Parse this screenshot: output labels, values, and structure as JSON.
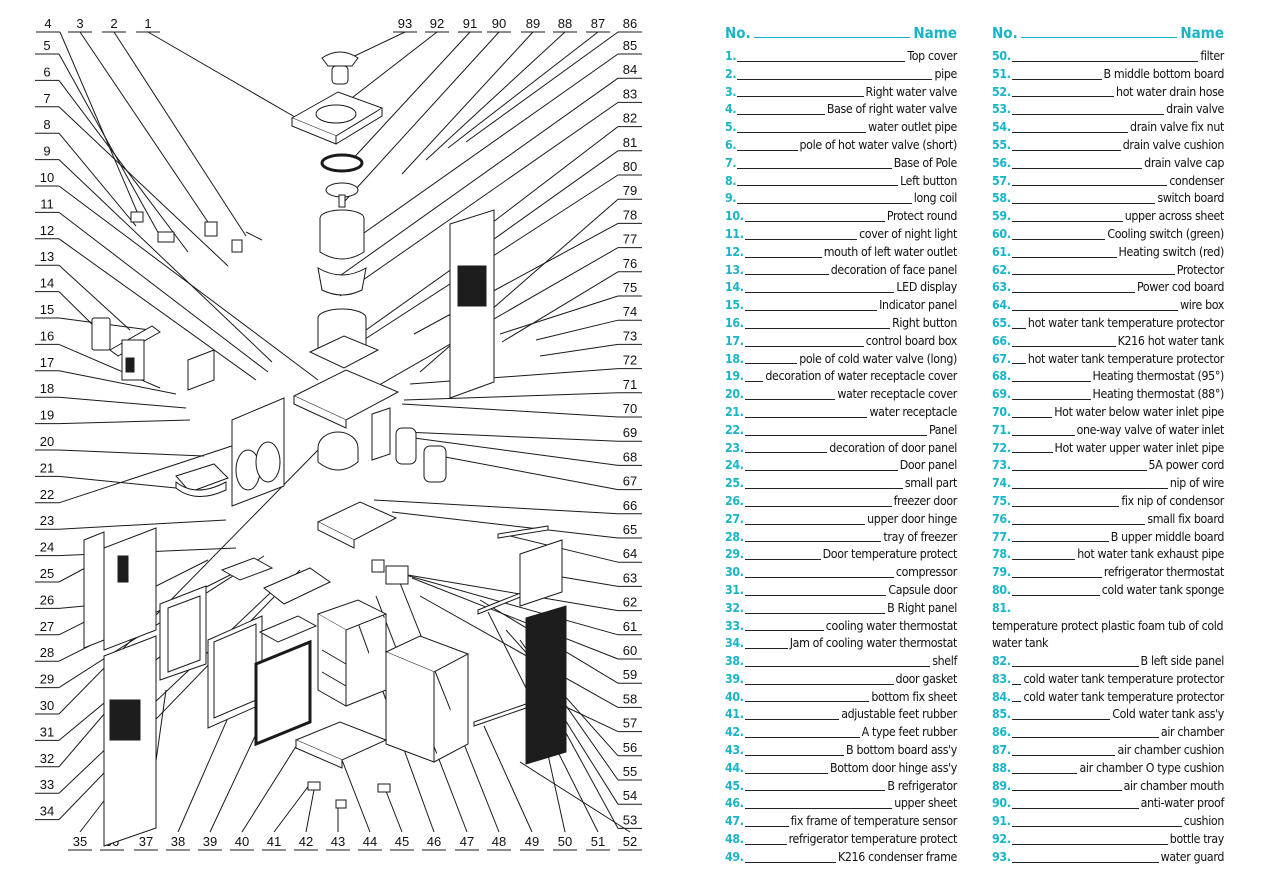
{
  "diagram": {
    "callouts": [
      "1",
      "2",
      "3",
      "4",
      "5",
      "6",
      "7",
      "8",
      "9",
      "10",
      "11",
      "12",
      "13",
      "14",
      "15",
      "16",
      "17",
      "18",
      "19",
      "20",
      "21",
      "22",
      "23",
      "24",
      "25",
      "26",
      "27",
      "28",
      "29",
      "30",
      "31",
      "32",
      "33",
      "34",
      "35",
      "36",
      "37",
      "38",
      "39",
      "40",
      "41",
      "42",
      "43",
      "44",
      "45",
      "46",
      "47",
      "48",
      "49",
      "50",
      "51",
      "52",
      "53",
      "54",
      "55",
      "56",
      "57",
      "58",
      "59",
      "60",
      "61",
      "62",
      "63",
      "64",
      "65",
      "66",
      "67",
      "68",
      "69",
      "70",
      "71",
      "72",
      "73",
      "74",
      "75",
      "76",
      "77",
      "78",
      "79",
      "80",
      "81",
      "82",
      "83",
      "84",
      "85",
      "86",
      "87",
      "88",
      "89",
      "90",
      "91",
      "92",
      "93"
    ]
  },
  "legend": {
    "header_no": "No.",
    "header_name": "Name",
    "left": [
      {
        "no": "1.",
        "name": "Top cover"
      },
      {
        "no": "2.",
        "name": "pipe"
      },
      {
        "no": "3.",
        "name": "Right water valve"
      },
      {
        "no": "4.",
        "name": "Base of right water valve"
      },
      {
        "no": "5.",
        "name": "water outlet pipe"
      },
      {
        "no": "6.",
        "name": "pole of hot water valve (short)"
      },
      {
        "no": "7.",
        "name": "Base of Pole"
      },
      {
        "no": "8.",
        "name": "Left button"
      },
      {
        "no": "9.",
        "name": "long coil"
      },
      {
        "no": "10.",
        "name": "Protect round"
      },
      {
        "no": "11.",
        "name": "cover of night light"
      },
      {
        "no": "12.",
        "name": "mouth of left water outlet"
      },
      {
        "no": "13.",
        "name": "decoration of face panel"
      },
      {
        "no": "14.",
        "name": "LED display"
      },
      {
        "no": "15.",
        "name": "Indicator panel"
      },
      {
        "no": "16.",
        "name": "Right button"
      },
      {
        "no": "17.",
        "name": "control board box"
      },
      {
        "no": "18.",
        "name": "pole of cold water valve (long)"
      },
      {
        "no": "19.",
        "name": "decoration of water receptacle cover"
      },
      {
        "no": "20.",
        "name": "water receptacle cover"
      },
      {
        "no": "21.",
        "name": "water receptacle"
      },
      {
        "no": "22.",
        "name": "Panel"
      },
      {
        "no": "23.",
        "name": "decoration of door panel"
      },
      {
        "no": "24.",
        "name": "Door panel"
      },
      {
        "no": "25.",
        "name": "small part"
      },
      {
        "no": "26.",
        "name": "freezer door"
      },
      {
        "no": "27.",
        "name": "upper door hinge"
      },
      {
        "no": "28.",
        "name": "tray of freezer"
      },
      {
        "no": "29.",
        "name": "Door temperature protect"
      },
      {
        "no": "30.",
        "name": "compressor"
      },
      {
        "no": "31.",
        "name": "Capsule door"
      },
      {
        "no": "32.",
        "name": "B Right panel"
      },
      {
        "no": "33.",
        "name": "cooling water thermostat"
      },
      {
        "no": "34.",
        "name": "Jam of cooling water thermostat"
      },
      {
        "no": "38.",
        "name": "shelf"
      },
      {
        "no": "39.",
        "name": "door gasket"
      },
      {
        "no": "40.",
        "name": "bottom fix sheet"
      },
      {
        "no": "41.",
        "name": "adjustable feet rubber"
      },
      {
        "no": "42.",
        "name": "A type feet rubber"
      },
      {
        "no": "43.",
        "name": "B bottom board ass'y"
      },
      {
        "no": "44.",
        "name": "Bottom door hinge ass'y"
      },
      {
        "no": "45.",
        "name": "B refrigerator"
      },
      {
        "no": "46.",
        "name": "upper sheet"
      },
      {
        "no": "47.",
        "name": "fix frame of temperature sensor"
      },
      {
        "no": "48.",
        "name": "refrigerator temperature protect"
      },
      {
        "no": "49.",
        "name": "K216 condenser frame"
      }
    ],
    "right": [
      {
        "no": "50.",
        "name": "filter"
      },
      {
        "no": "51.",
        "name": "B middle bottom board"
      },
      {
        "no": "52.",
        "name": "hot water drain hose"
      },
      {
        "no": "53.",
        "name": "drain valve"
      },
      {
        "no": "54.",
        "name": "drain valve fix nut"
      },
      {
        "no": "55.",
        "name": "drain valve cushion"
      },
      {
        "no": "56.",
        "name": "drain valve cap"
      },
      {
        "no": "57.",
        "name": "condenser"
      },
      {
        "no": "58.",
        "name": "switch board"
      },
      {
        "no": "59.",
        "name": "upper across sheet"
      },
      {
        "no": "60.",
        "name": "Cooling switch (green)"
      },
      {
        "no": "61.",
        "name": "Heating switch (red)"
      },
      {
        "no": "62.",
        "name": "Protector"
      },
      {
        "no": "63.",
        "name": "Power cod board"
      },
      {
        "no": "64.",
        "name": "wire box"
      },
      {
        "no": "65.",
        "name": "hot water tank temperature protector"
      },
      {
        "no": "66.",
        "name": "K216 hot water tank"
      },
      {
        "no": "67.",
        "name": "hot water tank temperature protector"
      },
      {
        "no": "68.",
        "name": "Heating thermostat (95°)"
      },
      {
        "no": "69.",
        "name": "Heating thermostat (88°)"
      },
      {
        "no": "70.",
        "name": "Hot water below water inlet pipe"
      },
      {
        "no": "71.",
        "name": "one-way valve of water inlet"
      },
      {
        "no": "72.",
        "name": "Hot water upper water inlet pipe"
      },
      {
        "no": "73.",
        "name": "5A power cord"
      },
      {
        "no": "74.",
        "name": "nip of wire"
      },
      {
        "no": "75.",
        "name": "fix nip of condensor"
      },
      {
        "no": "76.",
        "name": "small fix board"
      },
      {
        "no": "77.",
        "name": "B upper middle board"
      },
      {
        "no": "78.",
        "name": "hot water tank exhaust pipe"
      },
      {
        "no": "79.",
        "name": "refrigerator thermostat"
      },
      {
        "no": "80.",
        "name": "cold water tank sponge"
      },
      {
        "no": "81.",
        "name": "temperature protect plastic foam tub of cold water tank",
        "wrap": true
      },
      {
        "no": "82.",
        "name": "B left side panel"
      },
      {
        "no": "83.",
        "name": "cold water tank temperature protector"
      },
      {
        "no": "84.",
        "name": "cold water tank temperature protector"
      },
      {
        "no": "85.",
        "name": "Cold water tank ass'y"
      },
      {
        "no": "86.",
        "name": "air chamber"
      },
      {
        "no": "87.",
        "name": "air chamber cushion"
      },
      {
        "no": "88.",
        "name": "air chamber O type cushion"
      },
      {
        "no": "89.",
        "name": "air chamber mouth"
      },
      {
        "no": "90.",
        "name": "anti-water proof"
      },
      {
        "no": "91.",
        "name": "cushion"
      },
      {
        "no": "92.",
        "name": "bottle tray"
      },
      {
        "no": "93.",
        "name": "water guard"
      }
    ]
  }
}
